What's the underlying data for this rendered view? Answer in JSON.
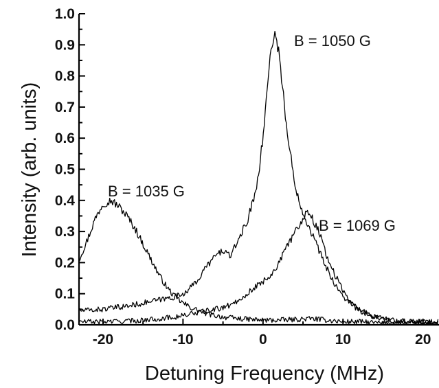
{
  "chart_data": {
    "type": "line",
    "title": "",
    "xlabel": "Detuning Frequency (MHz)",
    "ylabel": "Intensity (arb. units)",
    "xlim": [
      -23,
      22
    ],
    "ylim": [
      0.0,
      1.0
    ],
    "grid": false,
    "legend": "none",
    "x_ticks": [
      -20,
      -10,
      0,
      10,
      20
    ],
    "x_tick_labels": [
      "-20",
      "-10",
      "0",
      "10",
      "20"
    ],
    "y_ticks": [
      0.0,
      0.1,
      0.2,
      0.3,
      0.4,
      0.5,
      0.6,
      0.7,
      0.8,
      0.9,
      1.0
    ],
    "y_tick_labels": [
      "0.0",
      "0.1",
      "0.2",
      "0.3",
      "0.4",
      "0.5",
      "0.6",
      "0.7",
      "0.8",
      "0.9",
      "1.0"
    ],
    "series": [
      {
        "name": "B = 1035 G",
        "x": [
          -23,
          -22,
          -21,
          -20,
          -19,
          -18,
          -17,
          -16,
          -15,
          -14,
          -13,
          -12,
          -11,
          -10,
          -9,
          -8,
          -7,
          -6,
          -5,
          -4,
          -2,
          0,
          2,
          4,
          6,
          8,
          10,
          12,
          15,
          18,
          22
        ],
        "y": [
          0.21,
          0.27,
          0.34,
          0.39,
          0.4,
          0.38,
          0.35,
          0.31,
          0.26,
          0.21,
          0.16,
          0.12,
          0.09,
          0.07,
          0.055,
          0.045,
          0.035,
          0.03,
          0.025,
          0.022,
          0.018,
          0.015,
          0.015,
          0.017,
          0.02,
          0.015,
          0.01,
          0.01,
          0.005,
          0.005,
          0.005
        ]
      },
      {
        "name": "B = 1050 G",
        "x": [
          -23,
          -20,
          -17,
          -15,
          -13,
          -11,
          -10,
          -9,
          -8,
          -7,
          -6,
          -5,
          -4,
          -3,
          -2,
          -1,
          -0.5,
          0,
          0.5,
          1,
          1.5,
          2,
          3,
          4,
          5,
          6,
          7,
          8,
          9,
          10,
          12,
          14,
          16,
          18,
          20,
          22
        ],
        "y": [
          0.045,
          0.05,
          0.06,
          0.07,
          0.08,
          0.09,
          0.1,
          0.12,
          0.15,
          0.19,
          0.22,
          0.24,
          0.22,
          0.28,
          0.33,
          0.42,
          0.5,
          0.6,
          0.75,
          0.9,
          0.93,
          0.88,
          0.62,
          0.45,
          0.36,
          0.3,
          0.24,
          0.18,
          0.13,
          0.09,
          0.05,
          0.025,
          0.015,
          0.01,
          0.01,
          0.01
        ]
      },
      {
        "name": "B = 1069 G",
        "x": [
          -23,
          -20,
          -17,
          -15,
          -13,
          -11,
          -10,
          -9,
          -8,
          -7,
          -6,
          -5,
          -4,
          -3,
          -2,
          -1,
          0,
          1,
          2,
          3,
          4,
          5,
          5.5,
          6,
          7,
          8,
          9,
          10,
          11,
          12,
          14,
          16,
          18,
          20,
          22
        ],
        "y": [
          0.01,
          0.01,
          0.012,
          0.015,
          0.02,
          0.025,
          0.03,
          0.035,
          0.04,
          0.045,
          0.05,
          0.055,
          0.065,
          0.08,
          0.1,
          0.12,
          0.14,
          0.16,
          0.2,
          0.25,
          0.3,
          0.34,
          0.37,
          0.35,
          0.3,
          0.22,
          0.16,
          0.11,
          0.07,
          0.045,
          0.025,
          0.015,
          0.01,
          0.01,
          0.01
        ]
      }
    ],
    "annotations": [
      {
        "text": "B = 1050 G",
        "series": "B = 1050 G"
      },
      {
        "text": "B = 1035 G",
        "series": "B = 1035 G"
      },
      {
        "text": "B = 1069 G",
        "series": "B = 1069 G"
      }
    ]
  }
}
